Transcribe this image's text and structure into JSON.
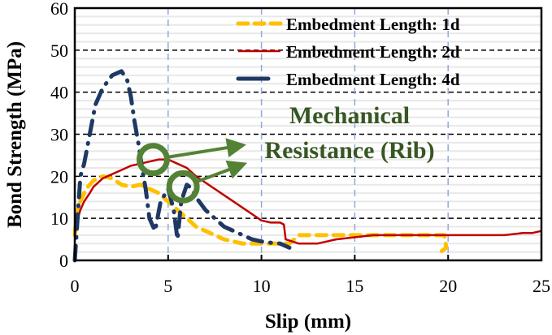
{
  "chart_data": {
    "type": "line",
    "title": "",
    "xlabel": "Slip (mm)",
    "ylabel": "Bond Strength (MPa)",
    "xlim": [
      0,
      25
    ],
    "ylim": [
      0,
      60
    ],
    "xticks": [
      0,
      5,
      10,
      15,
      20,
      25
    ],
    "yticks": [
      0,
      10,
      20,
      30,
      40,
      50,
      60
    ],
    "grid": {
      "major_y": true,
      "minor_y": true,
      "major_x": true
    },
    "legend_position": "top-right",
    "series": [
      {
        "name": "Embedment Length: 1d",
        "color": "#FFC000",
        "style": "dashed",
        "x": [
          0,
          0.1,
          0.3,
          0.6,
          1.0,
          1.5,
          2.0,
          2.5,
          3.0,
          3.5,
          4.0,
          4.5,
          5.0,
          5.5,
          6.0,
          6.5,
          7.0,
          7.5,
          8.0,
          8.5,
          9.0,
          10.0,
          11.0,
          11.5,
          12.0,
          13.0,
          14.0,
          15.0,
          16.0,
          17.0,
          18.0,
          19.0,
          19.8,
          19.9,
          19.6
        ],
        "y": [
          6,
          11,
          14,
          17,
          19,
          20,
          19.5,
          18,
          17.5,
          18,
          17,
          16,
          14,
          12,
          10,
          8,
          7,
          6,
          5,
          4.5,
          4,
          4,
          4,
          4,
          6,
          6,
          6,
          6,
          6,
          6,
          6,
          6,
          6,
          3,
          2
        ]
      },
      {
        "name": "Embedment Length: 2d",
        "color": "#C00000",
        "style": "solid",
        "x": [
          0,
          0.1,
          0.3,
          0.5,
          0.8,
          1.0,
          1.5,
          2.0,
          2.5,
          3.0,
          3.5,
          4.0,
          4.5,
          5.0,
          5.5,
          6.0,
          6.5,
          7.0,
          7.5,
          8.0,
          8.5,
          9.0,
          9.5,
          10.0,
          10.5,
          11.0,
          11.2,
          11.3,
          12.0,
          12.5,
          13.0,
          13.5,
          14.0,
          15.0,
          16.0,
          17.0,
          18.0,
          19.0,
          20.0,
          21.0,
          22.0,
          23.0,
          24.0,
          24.5,
          25.0
        ],
        "y": [
          6,
          9,
          12,
          14,
          16,
          17.5,
          19.5,
          20.5,
          21.5,
          22.5,
          23,
          23.5,
          24,
          24,
          23,
          22,
          20,
          18.5,
          17,
          15.5,
          14,
          12.5,
          11,
          9.5,
          9,
          9,
          8.5,
          5,
          4,
          4,
          4,
          4.5,
          5,
          5.5,
          6,
          6,
          6,
          6,
          6,
          6,
          6,
          6,
          6.5,
          6.5,
          7
        ]
      },
      {
        "name": "Embedment Length: 4d",
        "color": "#1F3864",
        "style": "long-dash-dot",
        "x": [
          0,
          0.15,
          0.3,
          0.5,
          0.8,
          1.1,
          1.5,
          2.0,
          2.5,
          2.8,
          3.0,
          3.2,
          3.4,
          3.6,
          3.8,
          4.0,
          4.3,
          4.6,
          5.0,
          5.3,
          5.5,
          5.7,
          6.0,
          6.3,
          6.5,
          7.0,
          7.5,
          8.0,
          8.5,
          9.0,
          9.5,
          10.0,
          10.5,
          11.0,
          11.5
        ],
        "y": [
          0,
          10,
          20,
          23,
          30,
          37,
          41,
          44,
          45,
          43,
          39,
          33,
          28,
          22,
          17,
          10,
          7,
          14,
          17,
          12,
          5,
          14,
          18,
          17,
          15,
          12,
          10,
          8,
          7,
          6,
          5,
          4.5,
          4.2,
          4,
          3
        ]
      }
    ],
    "annotations": [
      {
        "text_line1": "Mechanical",
        "text_line2": "Resistance (Rib)",
        "color": "#375623",
        "marker_color": "#548235",
        "circles": [
          {
            "x": 4.2,
            "y": 24
          },
          {
            "x": 5.8,
            "y": 17.5
          }
        ],
        "arrow_target": {
          "x": 9.3,
          "y": 27
        }
      }
    ]
  },
  "legend": [
    {
      "label": "Embedment Length: 1d"
    },
    {
      "label": "Embedment Length: 2d"
    },
    {
      "label": "Embedment Length: 4d"
    }
  ]
}
